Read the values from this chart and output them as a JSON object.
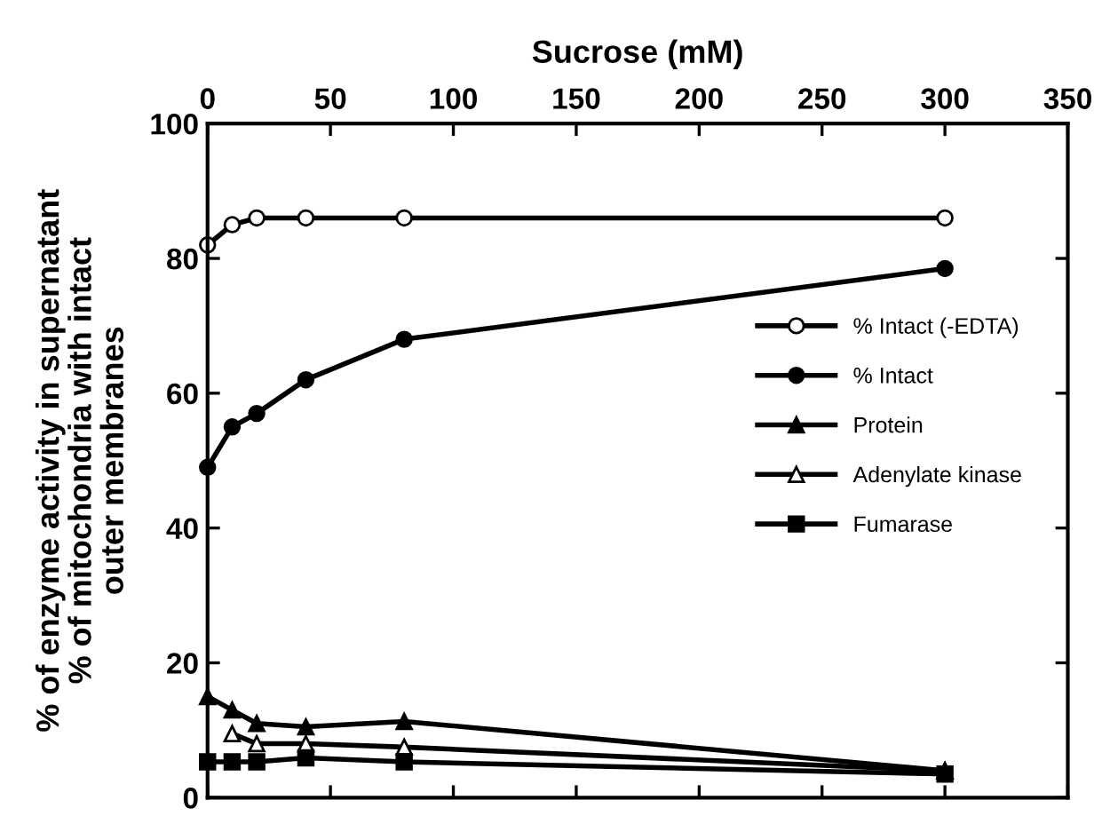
{
  "chart_data": {
    "type": "line",
    "xlabel": "Sucrose (mM)",
    "ylabel": "% of enzyme activity in supernatant\n% of mitochondria with intact\nouter membranes",
    "x": [
      0,
      10,
      20,
      40,
      80,
      300
    ],
    "xlim": [
      0,
      350
    ],
    "xticks": [
      0,
      50,
      100,
      150,
      200,
      250,
      300,
      350
    ],
    "ylim": [
      0,
      100
    ],
    "yticks": [
      0,
      20,
      40,
      60,
      80,
      100
    ],
    "legend": "center right",
    "grid": false,
    "series": [
      {
        "name": "% Intact (-EDTA)",
        "color": "#000000",
        "marker": "circle",
        "values": [
          82,
          85,
          86,
          86,
          86,
          86
        ]
      },
      {
        "name": "% Intact",
        "color": "#000000",
        "marker": "circle",
        "values": [
          49,
          55,
          57,
          62,
          68,
          78.5
        ]
      },
      {
        "name": "Protein",
        "color": "#000000",
        "marker": "triangle",
        "values": [
          15,
          13,
          11,
          10.5,
          11.3,
          4
        ]
      },
      {
        "name": "Adenylate kinase",
        "color": "#000000",
        "marker": "triangle",
        "values": [
          null,
          9.5,
          8,
          8,
          7.5,
          4
        ]
      },
      {
        "name": "Fumarase",
        "color": "#000000",
        "marker": "square",
        "values": [
          5.3,
          5.3,
          5.3,
          5.9,
          5.3,
          3.5
        ]
      }
    ]
  }
}
